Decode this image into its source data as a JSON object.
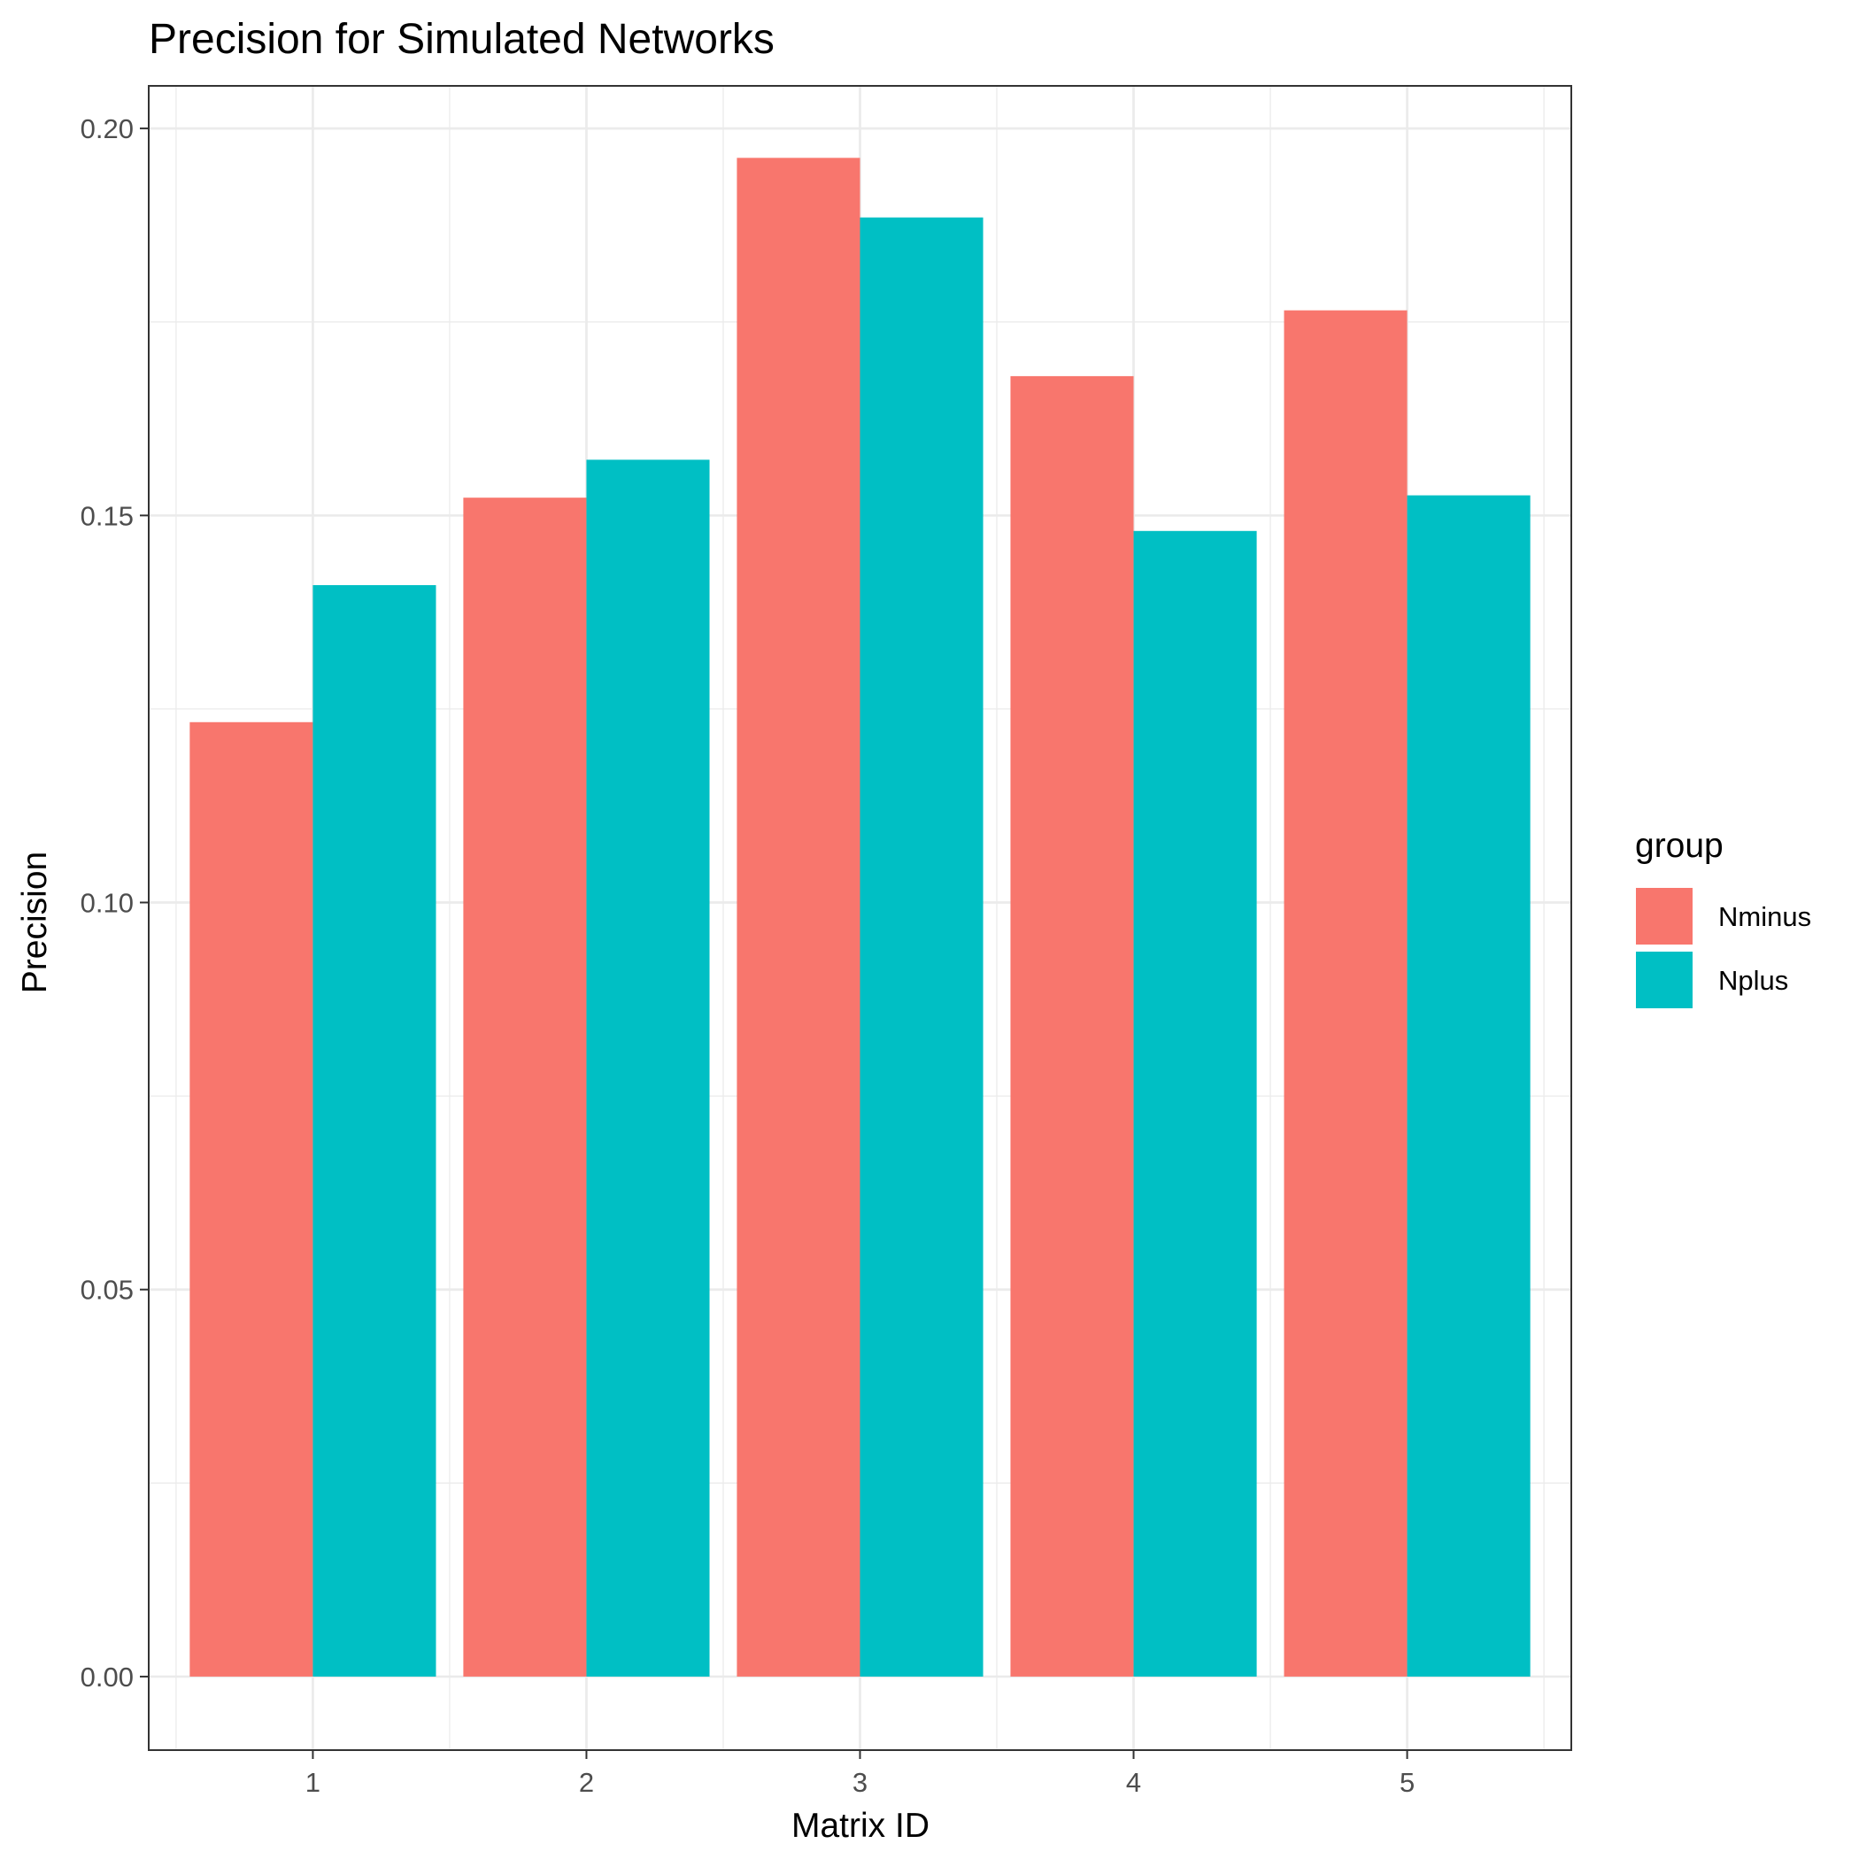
{
  "chart_data": {
    "type": "bar",
    "title": "Precision for Simulated Networks",
    "xlabel": "Matrix ID",
    "ylabel": "Precision",
    "categories": [
      "1",
      "2",
      "3",
      "4",
      "5"
    ],
    "series": [
      {
        "name": "Nminus",
        "color": "#F8766D",
        "values": [
          0.1233,
          0.1523,
          0.1962,
          0.168,
          0.1765
        ]
      },
      {
        "name": "Nplus",
        "color": "#00BFC4",
        "values": [
          0.141,
          0.1572,
          0.1885,
          0.148,
          0.1526
        ]
      }
    ],
    "ylim": [
      -0.0095,
      0.2055
    ],
    "yticks": [
      0,
      0.05,
      0.1,
      0.15,
      0.2
    ],
    "ytick_labels": [
      "0.00",
      "0.05",
      "0.10",
      "0.15",
      "0.20"
    ],
    "grid": true,
    "legend": {
      "title": "group",
      "position": "right"
    },
    "background": "#FFFFFF",
    "grid_color": "#EBEBEB",
    "panel_border_color": "#333333"
  }
}
